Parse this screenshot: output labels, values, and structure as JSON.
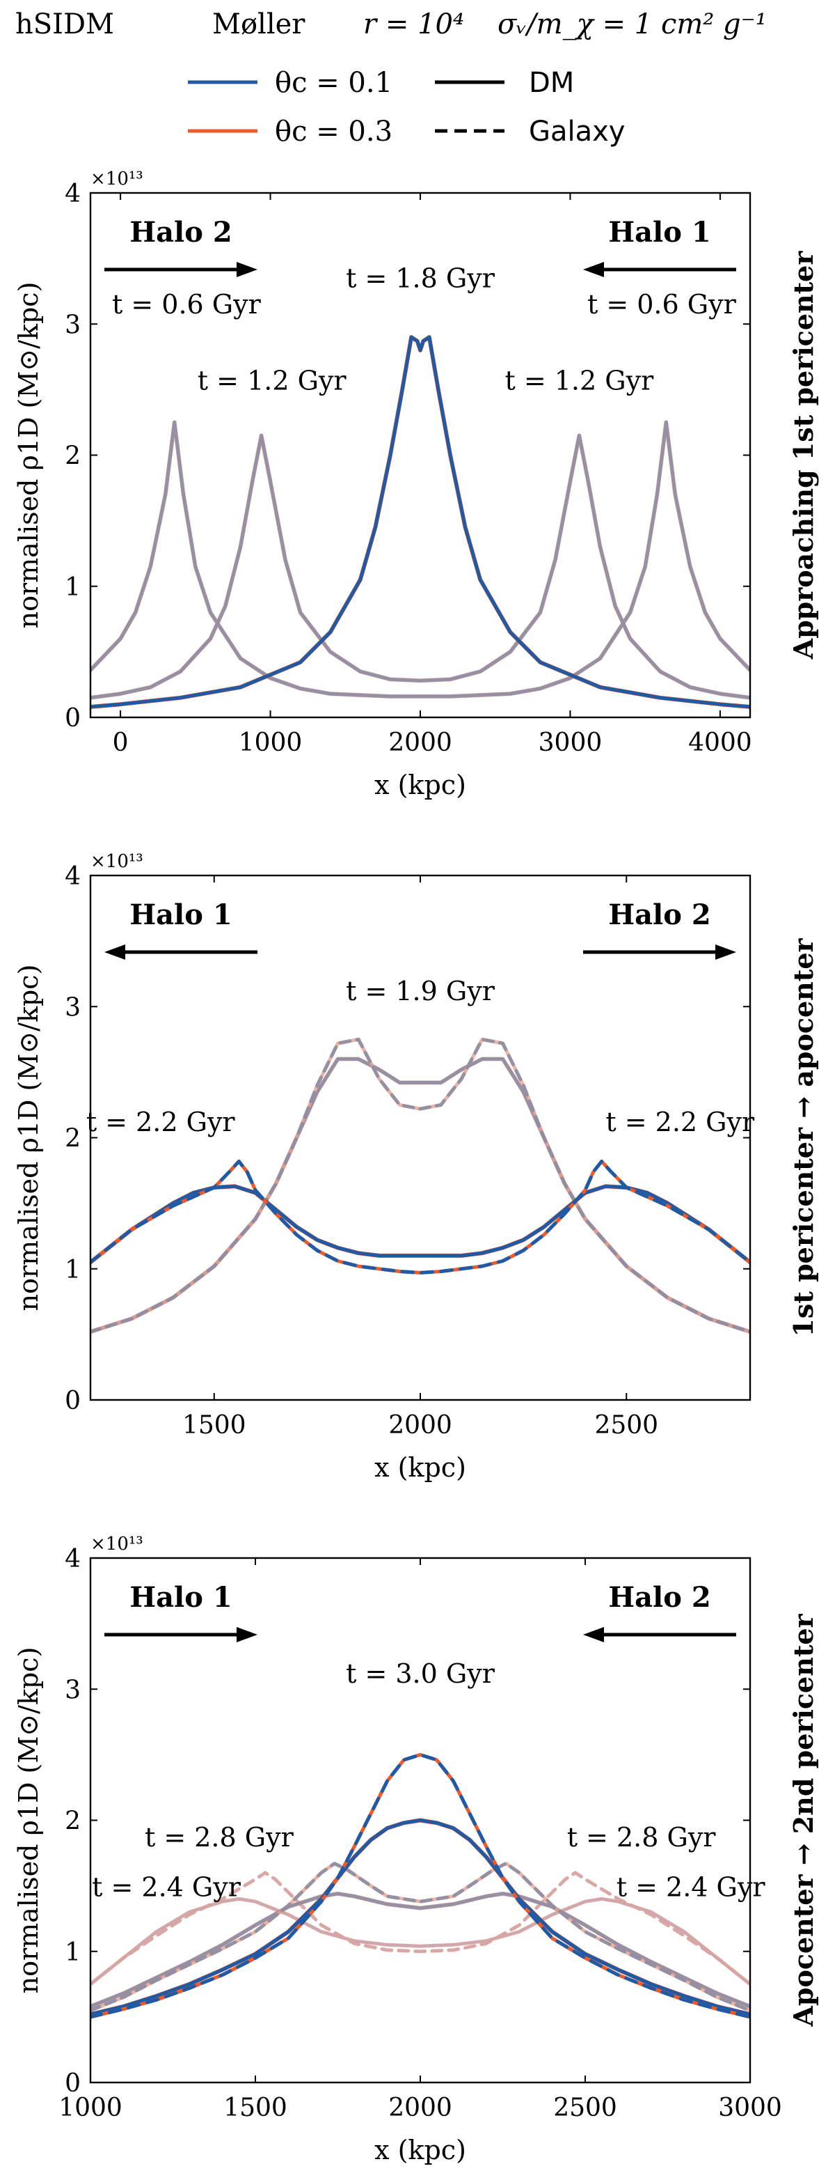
{
  "header": {
    "model": "hSIDM",
    "cross_section": "Møller",
    "r_label": "r = 10⁴",
    "sigma_label": "σᵥ/m_χ = 1 cm² g⁻¹"
  },
  "legend": {
    "theta_01": "θc = 0.1",
    "theta_03": "θc = 0.3",
    "dm": "DM",
    "galaxy": "Galaxy"
  },
  "colors": {
    "theta_01": "#1f5aa6",
    "theta_03": "#f05a28",
    "grey": "#8c8ca3",
    "pink": "#e9a08e"
  },
  "chart_data": [
    {
      "type": "line",
      "title": "",
      "side_label": "Approaching 1st pericenter",
      "xlabel": "x (kpc)",
      "ylabel": "normalised ρ1D (M⊙/kpc)",
      "y_multiplier": "×10¹³",
      "xlim": [
        -200,
        4200
      ],
      "ylim": [
        0,
        4
      ],
      "xticks": [
        0,
        1000,
        2000,
        3000,
        4000
      ],
      "yticks": [
        0,
        1,
        2,
        3,
        4
      ],
      "annotations": {
        "halo_left": "Halo 2",
        "halo_right": "Halo 1",
        "halo_left_dir": "right",
        "halo_right_dir": "left",
        "time_labels": [
          {
            "text": "t = 1.8 Gyr",
            "x": 2000,
            "y": 3.28
          },
          {
            "text": "t = 0.6 Gyr",
            "x": 440,
            "y": 3.08
          },
          {
            "text": "t = 0.6 Gyr",
            "x": 3610,
            "y": 3.08
          },
          {
            "text": "t = 1.2 Gyr",
            "x": 1010,
            "y": 2.5
          },
          {
            "text": "t = 1.2 Gyr",
            "x": 3060,
            "y": 2.5
          }
        ]
      },
      "series": [
        {
          "name": "t=0.6 DM",
          "style": "faded",
          "x": [
            -200,
            0,
            100,
            200,
            300,
            360,
            420,
            500,
            600,
            800,
            1000,
            1200,
            1400,
            1600,
            1800,
            2000,
            2200,
            2400,
            2600,
            2800,
            3000,
            3200,
            3400,
            3500,
            3580,
            3640,
            3700,
            3800,
            3900,
            4000,
            4200
          ],
          "y": [
            0.36,
            0.6,
            0.8,
            1.15,
            1.7,
            2.25,
            1.7,
            1.15,
            0.8,
            0.45,
            0.3,
            0.22,
            0.18,
            0.17,
            0.16,
            0.16,
            0.16,
            0.17,
            0.18,
            0.22,
            0.3,
            0.45,
            0.8,
            1.15,
            1.7,
            2.25,
            1.7,
            1.15,
            0.8,
            0.6,
            0.36
          ]
        },
        {
          "name": "t=1.2 DM",
          "style": "faded",
          "x": [
            -200,
            0,
            200,
            400,
            600,
            700,
            800,
            880,
            940,
            1000,
            1100,
            1200,
            1400,
            1600,
            1800,
            2000,
            2200,
            2400,
            2600,
            2800,
            2900,
            3000,
            3060,
            3120,
            3200,
            3300,
            3400,
            3600,
            3800,
            4000,
            4200
          ],
          "y": [
            0.15,
            0.18,
            0.23,
            0.35,
            0.6,
            0.85,
            1.3,
            1.8,
            2.15,
            1.8,
            1.2,
            0.8,
            0.5,
            0.35,
            0.29,
            0.28,
            0.29,
            0.35,
            0.5,
            0.8,
            1.2,
            1.8,
            2.15,
            1.8,
            1.3,
            0.85,
            0.6,
            0.35,
            0.23,
            0.18,
            0.15
          ]
        },
        {
          "name": "t=1.8 DM",
          "style": "solid",
          "x": [
            -200,
            0,
            400,
            800,
            1200,
            1400,
            1600,
            1700,
            1800,
            1880,
            1940,
            1980,
            2000,
            2020,
            2060,
            2120,
            2200,
            2300,
            2400,
            2600,
            2800,
            3200,
            3600,
            4000,
            4200
          ],
          "y": [
            0.08,
            0.1,
            0.15,
            0.23,
            0.42,
            0.65,
            1.05,
            1.45,
            2.0,
            2.5,
            2.9,
            2.87,
            2.8,
            2.87,
            2.9,
            2.5,
            2.0,
            1.45,
            1.05,
            0.65,
            0.42,
            0.23,
            0.15,
            0.1,
            0.08
          ]
        }
      ]
    },
    {
      "type": "line",
      "title": "",
      "side_label": "1st pericenter → apocenter",
      "xlabel": "x (kpc)",
      "ylabel": "normalised ρ1D (M⊙/kpc)",
      "y_multiplier": "×10¹³",
      "xlim": [
        1200,
        2800
      ],
      "ylim": [
        0,
        4
      ],
      "xticks": [
        1500,
        2000,
        2500
      ],
      "yticks": [
        0,
        1,
        2,
        3,
        4
      ],
      "annotations": {
        "halo_left": "Halo 1",
        "halo_right": "Halo 2",
        "halo_left_dir": "left",
        "halo_right_dir": "right",
        "time_labels": [
          {
            "text": "t = 1.9 Gyr",
            "x": 2000,
            "y": 3.05
          },
          {
            "text": "t = 2.2 Gyr",
            "x": 1370,
            "y": 2.05
          },
          {
            "text": "t = 2.2 Gyr",
            "x": 2630,
            "y": 2.05
          }
        ]
      },
      "series": [
        {
          "name": "t=1.9 DM",
          "style": "faded",
          "x": [
            1200,
            1300,
            1400,
            1500,
            1600,
            1650,
            1700,
            1750,
            1800,
            1850,
            1900,
            1950,
            2000,
            2050,
            2100,
            2150,
            2200,
            2250,
            2300,
            2350,
            2400,
            2500,
            2600,
            2700,
            2800
          ],
          "y": [
            0.52,
            0.62,
            0.78,
            1.02,
            1.38,
            1.65,
            2.0,
            2.35,
            2.6,
            2.6,
            2.52,
            2.42,
            2.42,
            2.42,
            2.52,
            2.6,
            2.6,
            2.35,
            2.0,
            1.65,
            1.38,
            1.02,
            0.78,
            0.62,
            0.52
          ]
        },
        {
          "name": "t=1.9 Galaxy",
          "style": "faded-dash",
          "x": [
            1200,
            1300,
            1400,
            1500,
            1600,
            1650,
            1700,
            1750,
            1800,
            1850,
            1900,
            1950,
            2000,
            2050,
            2100,
            2150,
            2200,
            2250,
            2300,
            2350,
            2400,
            2500,
            2600,
            2700,
            2800
          ],
          "y": [
            0.52,
            0.62,
            0.78,
            1.02,
            1.38,
            1.65,
            2.0,
            2.4,
            2.72,
            2.75,
            2.45,
            2.25,
            2.22,
            2.25,
            2.45,
            2.75,
            2.72,
            2.4,
            2.0,
            1.65,
            1.38,
            1.02,
            0.78,
            0.62,
            0.52
          ]
        },
        {
          "name": "t=2.2 DM",
          "style": "solid",
          "x": [
            1200,
            1300,
            1400,
            1450,
            1500,
            1550,
            1600,
            1650,
            1700,
            1750,
            1800,
            1850,
            1900,
            1950,
            2000,
            2050,
            2100,
            2150,
            2200,
            2250,
            2300,
            2350,
            2400,
            2450,
            2500,
            2550,
            2600,
            2700,
            2800
          ],
          "y": [
            1.05,
            1.3,
            1.5,
            1.58,
            1.62,
            1.63,
            1.58,
            1.45,
            1.32,
            1.22,
            1.16,
            1.12,
            1.1,
            1.1,
            1.1,
            1.1,
            1.1,
            1.12,
            1.16,
            1.22,
            1.32,
            1.45,
            1.58,
            1.63,
            1.62,
            1.58,
            1.5,
            1.3,
            1.05
          ]
        },
        {
          "name": "t=2.2 Galaxy",
          "style": "dash",
          "x": [
            1200,
            1300,
            1400,
            1450,
            1500,
            1540,
            1560,
            1580,
            1600,
            1650,
            1700,
            1750,
            1800,
            1850,
            1900,
            1950,
            2000,
            2050,
            2100,
            2150,
            2200,
            2250,
            2300,
            2350,
            2400,
            2420,
            2440,
            2460,
            2500,
            2550,
            2600,
            2700,
            2800
          ],
          "y": [
            1.05,
            1.3,
            1.48,
            1.55,
            1.62,
            1.75,
            1.82,
            1.74,
            1.6,
            1.42,
            1.26,
            1.14,
            1.06,
            1.02,
            1.0,
            0.98,
            0.97,
            0.98,
            1.0,
            1.02,
            1.06,
            1.14,
            1.26,
            1.42,
            1.6,
            1.74,
            1.82,
            1.75,
            1.62,
            1.55,
            1.48,
            1.3,
            1.05
          ]
        }
      ]
    },
    {
      "type": "line",
      "title": "",
      "side_label": "Apocenter → 2nd pericenter",
      "xlabel": "x (kpc)",
      "ylabel": "normalised ρ1D (M⊙/kpc)",
      "y_multiplier": "×10¹³",
      "xlim": [
        1000,
        3000
      ],
      "ylim": [
        0,
        4
      ],
      "xticks": [
        1000,
        1500,
        2000,
        2500,
        3000
      ],
      "yticks": [
        0,
        1,
        2,
        3,
        4
      ],
      "annotations": {
        "halo_left": "Halo 1",
        "halo_right": "Halo 2",
        "halo_left_dir": "right",
        "halo_right_dir": "left",
        "time_labels": [
          {
            "text": "t = 3.0 Gyr",
            "x": 2000,
            "y": 3.05
          },
          {
            "text": "t = 2.8 Gyr",
            "x": 1390,
            "y": 1.8
          },
          {
            "text": "t = 2.8 Gyr",
            "x": 2670,
            "y": 1.8
          },
          {
            "text": "t = 2.4 Gyr",
            "x": 1230,
            "y": 1.42
          },
          {
            "text": "t = 2.4 Gyr",
            "x": 2820,
            "y": 1.42
          }
        ]
      },
      "series": [
        {
          "name": "t=2.4 DM",
          "style": "pink",
          "x": [
            1000,
            1100,
            1200,
            1300,
            1400,
            1450,
            1500,
            1600,
            1700,
            1800,
            1900,
            2000,
            2100,
            2200,
            2300,
            2400,
            2500,
            2550,
            2600,
            2700,
            2800,
            2900,
            3000
          ],
          "y": [
            0.75,
            0.95,
            1.15,
            1.3,
            1.38,
            1.4,
            1.38,
            1.28,
            1.15,
            1.08,
            1.05,
            1.04,
            1.05,
            1.08,
            1.15,
            1.28,
            1.38,
            1.4,
            1.38,
            1.3,
            1.15,
            0.95,
            0.75
          ]
        },
        {
          "name": "t=2.4 Galaxy",
          "style": "pink-dash",
          "x": [
            1000,
            1100,
            1200,
            1300,
            1400,
            1500,
            1530,
            1560,
            1600,
            1700,
            1800,
            1900,
            2000,
            2100,
            2200,
            2300,
            2400,
            2440,
            2470,
            2500,
            2600,
            2700,
            2800,
            2900,
            3000
          ],
          "y": [
            0.75,
            0.95,
            1.12,
            1.28,
            1.4,
            1.55,
            1.6,
            1.55,
            1.45,
            1.2,
            1.06,
            1.01,
            1.0,
            1.01,
            1.06,
            1.2,
            1.45,
            1.55,
            1.6,
            1.55,
            1.4,
            1.28,
            1.12,
            0.95,
            0.75
          ]
        },
        {
          "name": "t=2.8 DM",
          "style": "faded",
          "x": [
            1000,
            1100,
            1200,
            1300,
            1400,
            1500,
            1600,
            1700,
            1750,
            1800,
            1900,
            2000,
            2100,
            2200,
            2250,
            2300,
            2400,
            2500,
            2600,
            2700,
            2800,
            2900,
            3000
          ],
          "y": [
            0.58,
            0.68,
            0.8,
            0.92,
            1.05,
            1.2,
            1.34,
            1.42,
            1.44,
            1.42,
            1.36,
            1.33,
            1.36,
            1.42,
            1.44,
            1.42,
            1.34,
            1.2,
            1.05,
            0.92,
            0.8,
            0.68,
            0.58
          ]
        },
        {
          "name": "t=2.8 Galaxy",
          "style": "faded-dash",
          "x": [
            1000,
            1100,
            1200,
            1300,
            1400,
            1500,
            1600,
            1700,
            1740,
            1780,
            1850,
            1900,
            2000,
            2100,
            2150,
            2220,
            2260,
            2300,
            2400,
            2500,
            2600,
            2700,
            2800,
            2900,
            3000
          ],
          "y": [
            0.55,
            0.65,
            0.78,
            0.9,
            1.02,
            1.15,
            1.35,
            1.6,
            1.67,
            1.62,
            1.5,
            1.42,
            1.38,
            1.42,
            1.5,
            1.62,
            1.67,
            1.6,
            1.35,
            1.15,
            1.02,
            0.9,
            0.78,
            0.65,
            0.55
          ]
        },
        {
          "name": "t=3.0 DM",
          "style": "solid",
          "x": [
            1000,
            1100,
            1200,
            1300,
            1400,
            1500,
            1600,
            1700,
            1750,
            1800,
            1850,
            1900,
            1950,
            2000,
            2050,
            2100,
            2150,
            2200,
            2250,
            2300,
            2400,
            2500,
            2600,
            2700,
            2800,
            2900,
            3000
          ],
          "y": [
            0.52,
            0.58,
            0.66,
            0.75,
            0.86,
            0.98,
            1.15,
            1.4,
            1.56,
            1.72,
            1.85,
            1.94,
            1.98,
            2.0,
            1.98,
            1.94,
            1.85,
            1.72,
            1.56,
            1.4,
            1.15,
            0.98,
            0.86,
            0.75,
            0.66,
            0.58,
            0.52
          ]
        },
        {
          "name": "t=3.0 Galaxy",
          "style": "dash",
          "x": [
            1000,
            1100,
            1200,
            1300,
            1400,
            1500,
            1600,
            1700,
            1750,
            1800,
            1850,
            1900,
            1950,
            2000,
            2050,
            2100,
            2150,
            2200,
            2250,
            2300,
            2400,
            2500,
            2600,
            2700,
            2800,
            2900,
            3000
          ],
          "y": [
            0.5,
            0.56,
            0.63,
            0.72,
            0.82,
            0.95,
            1.1,
            1.38,
            1.56,
            1.8,
            2.05,
            2.3,
            2.46,
            2.5,
            2.46,
            2.3,
            2.05,
            1.8,
            1.56,
            1.38,
            1.1,
            0.95,
            0.82,
            0.72,
            0.63,
            0.56,
            0.5
          ]
        }
      ]
    }
  ]
}
